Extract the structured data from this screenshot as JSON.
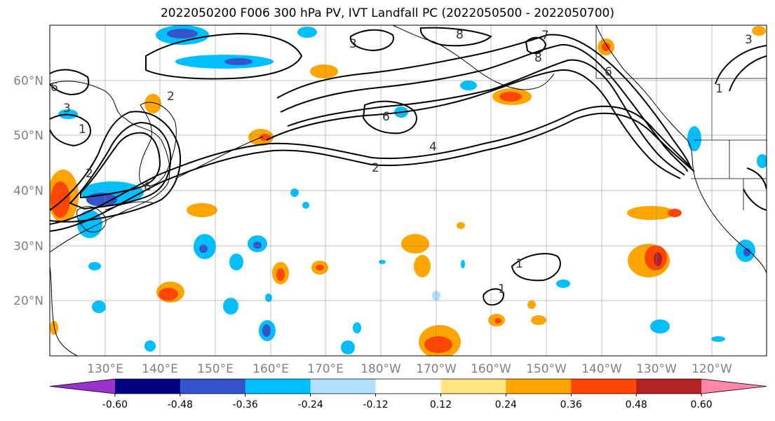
{
  "title": "2022050200 F006 300 hPa PV, IVT Landfall PC (2022050500 - 2022050700)",
  "lat_labels": [
    "60°N",
    "50°N",
    "40°N",
    "30°N",
    "20°N"
  ],
  "lon_labels": [
    "130°E",
    "140°E",
    "150°E",
    "160°E",
    "170°E",
    "180°W",
    "170°W",
    "160°W",
    "150°W",
    "140°W",
    "130°W",
    "120°W"
  ],
  "colorbar": {
    "colors": [
      "#9933cc",
      "#000080",
      "#3355cc",
      "#00bfff",
      "#b0e0ff",
      "#ffffff",
      "#ffe680",
      "#ffa500",
      "#ff4500",
      "#b22222",
      "#ff88aa"
    ],
    "tick_labels": [
      "-0.60",
      "-0.48",
      "-0.36",
      "-0.24",
      "-0.12",
      "0.12",
      "0.24",
      "0.36",
      "0.48",
      "0.60"
    ]
  },
  "contour_labels": [
    "2",
    "2",
    "2",
    "1",
    "6",
    "6",
    "6",
    "8",
    "7",
    "8",
    "3",
    "4",
    "1",
    "3",
    "1",
    "6",
    "3",
    "1"
  ]
}
